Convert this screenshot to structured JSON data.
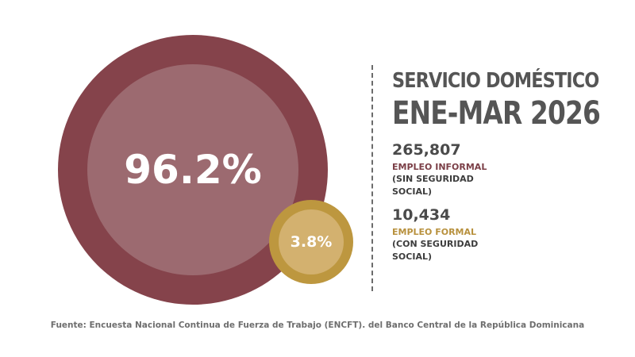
{
  "title_line1": "SERVICIO DOMÉSTICO",
  "title_line2": "ENE-MAR 2026",
  "stats": [
    {
      "value": "265,807",
      "label": "EMPLEO INFORMAL",
      "sublabel": "(SIN SEGURIDAD SOCIAL)"
    },
    {
      "value": "10,434",
      "label": "EMPLEO FORMAL",
      "sublabel": "(CON SEGURIDAD SOCIAL)"
    }
  ],
  "source": "Fuente: Encuesta Nacional Continua de Fuerza de Trabajo (ENCFT). del Banco Central de la República Dominicana",
  "colors": {
    "informal_outer": "#85434b",
    "informal_inner": "#9c6a70",
    "formal_outer": "#bd973f",
    "formal_inner": "#d3b16f",
    "title_text": "#555555"
  },
  "chart_data": {
    "type": "bubble",
    "series": [
      {
        "name": "EMPLEO INFORMAL",
        "value": 265807,
        "percent": 96.2,
        "label": "96.2%"
      },
      {
        "name": "EMPLEO FORMAL",
        "value": 10434,
        "percent": 3.8,
        "label": "3.8%"
      }
    ]
  }
}
